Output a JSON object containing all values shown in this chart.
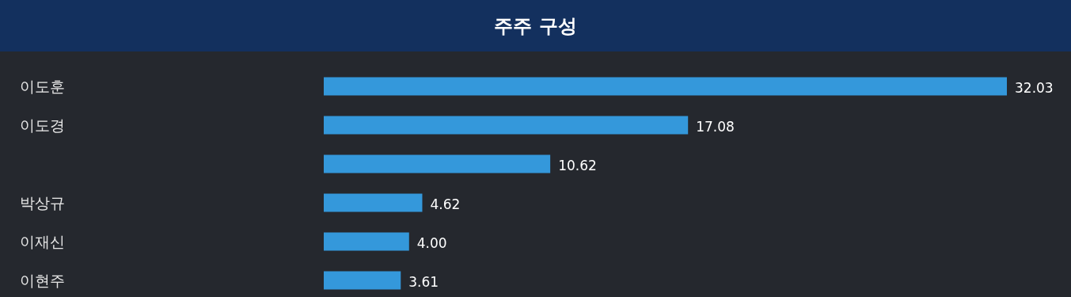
{
  "chart_data": {
    "type": "bar",
    "orientation": "horizontal",
    "title": "주주 구성",
    "categories": [
      "이도훈",
      "이도경",
      null,
      "박상규",
      "이재신",
      "이현주"
    ],
    "values": [
      32.03,
      17.08,
      10.62,
      4.62,
      4.0,
      3.61
    ],
    "value_labels": [
      "32.03",
      "17.08",
      "10.62",
      "4.62",
      "4.00",
      "3.61"
    ],
    "color": "#3498db"
  }
}
